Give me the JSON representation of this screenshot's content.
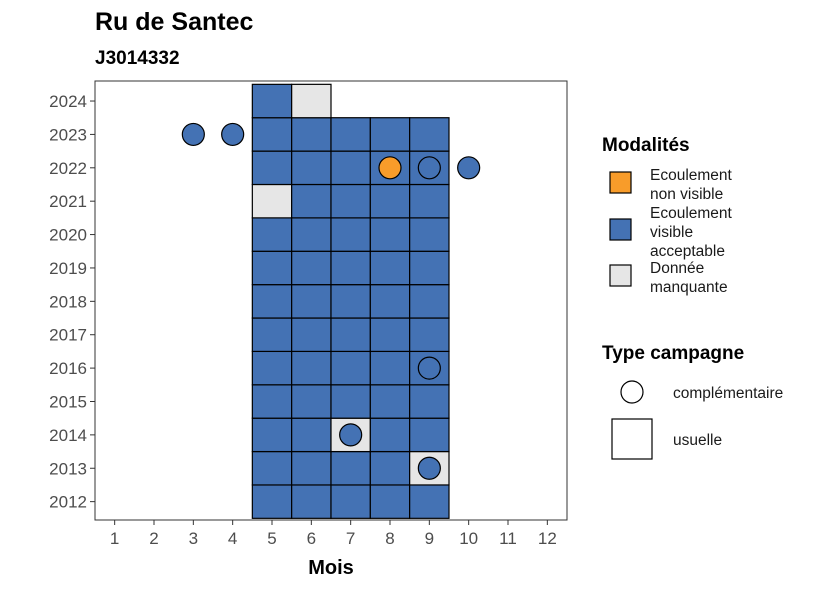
{
  "chart_data": {
    "type": "heatmap",
    "title": "Ru de Santec",
    "subtitle": "J3014332",
    "xlabel": "Mois",
    "ylabel": "",
    "x_ticks": [
      1,
      2,
      3,
      4,
      5,
      6,
      7,
      8,
      9,
      10,
      11,
      12
    ],
    "y_ticks": [
      2012,
      2013,
      2014,
      2015,
      2016,
      2017,
      2018,
      2019,
      2020,
      2021,
      2022,
      2023,
      2024
    ],
    "xlim": [
      0.5,
      12.5
    ],
    "ylim": [
      2011.45,
      2024.6
    ],
    "colors": {
      "Ecoulement non visible": "#f89c2a",
      "Ecoulement visible acceptable": "#4472b4",
      "Donnée manquante": "#e6e6e6"
    },
    "tiles": [
      {
        "year": 2012,
        "month": 5,
        "modalite": "Ecoulement visible acceptable"
      },
      {
        "year": 2012,
        "month": 6,
        "modalite": "Ecoulement visible acceptable"
      },
      {
        "year": 2012,
        "month": 7,
        "modalite": "Ecoulement visible acceptable"
      },
      {
        "year": 2012,
        "month": 8,
        "modalite": "Ecoulement visible acceptable"
      },
      {
        "year": 2012,
        "month": 9,
        "modalite": "Ecoulement visible acceptable"
      },
      {
        "year": 2013,
        "month": 5,
        "modalite": "Ecoulement visible acceptable"
      },
      {
        "year": 2013,
        "month": 6,
        "modalite": "Ecoulement visible acceptable"
      },
      {
        "year": 2013,
        "month": 7,
        "modalite": "Ecoulement visible acceptable"
      },
      {
        "year": 2013,
        "month": 8,
        "modalite": "Ecoulement visible acceptable"
      },
      {
        "year": 2013,
        "month": 9,
        "modalite": "Donnée manquante"
      },
      {
        "year": 2014,
        "month": 5,
        "modalite": "Ecoulement visible acceptable"
      },
      {
        "year": 2014,
        "month": 6,
        "modalite": "Ecoulement visible acceptable"
      },
      {
        "year": 2014,
        "month": 7,
        "modalite": "Donnée manquante"
      },
      {
        "year": 2014,
        "month": 8,
        "modalite": "Ecoulement visible acceptable"
      },
      {
        "year": 2014,
        "month": 9,
        "modalite": "Ecoulement visible acceptable"
      },
      {
        "year": 2015,
        "month": 5,
        "modalite": "Ecoulement visible acceptable"
      },
      {
        "year": 2015,
        "month": 6,
        "modalite": "Ecoulement visible acceptable"
      },
      {
        "year": 2015,
        "month": 7,
        "modalite": "Ecoulement visible acceptable"
      },
      {
        "year": 2015,
        "month": 8,
        "modalite": "Ecoulement visible acceptable"
      },
      {
        "year": 2015,
        "month": 9,
        "modalite": "Ecoulement visible acceptable"
      },
      {
        "year": 2016,
        "month": 5,
        "modalite": "Ecoulement visible acceptable"
      },
      {
        "year": 2016,
        "month": 6,
        "modalite": "Ecoulement visible acceptable"
      },
      {
        "year": 2016,
        "month": 7,
        "modalite": "Ecoulement visible acceptable"
      },
      {
        "year": 2016,
        "month": 8,
        "modalite": "Ecoulement visible acceptable"
      },
      {
        "year": 2016,
        "month": 9,
        "modalite": "Ecoulement visible acceptable"
      },
      {
        "year": 2017,
        "month": 5,
        "modalite": "Ecoulement visible acceptable"
      },
      {
        "year": 2017,
        "month": 6,
        "modalite": "Ecoulement visible acceptable"
      },
      {
        "year": 2017,
        "month": 7,
        "modalite": "Ecoulement visible acceptable"
      },
      {
        "year": 2017,
        "month": 8,
        "modalite": "Ecoulement visible acceptable"
      },
      {
        "year": 2017,
        "month": 9,
        "modalite": "Ecoulement visible acceptable"
      },
      {
        "year": 2018,
        "month": 5,
        "modalite": "Ecoulement visible acceptable"
      },
      {
        "year": 2018,
        "month": 6,
        "modalite": "Ecoulement visible acceptable"
      },
      {
        "year": 2018,
        "month": 7,
        "modalite": "Ecoulement visible acceptable"
      },
      {
        "year": 2018,
        "month": 8,
        "modalite": "Ecoulement visible acceptable"
      },
      {
        "year": 2018,
        "month": 9,
        "modalite": "Ecoulement visible acceptable"
      },
      {
        "year": 2019,
        "month": 5,
        "modalite": "Ecoulement visible acceptable"
      },
      {
        "year": 2019,
        "month": 6,
        "modalite": "Ecoulement visible acceptable"
      },
      {
        "year": 2019,
        "month": 7,
        "modalite": "Ecoulement visible acceptable"
      },
      {
        "year": 2019,
        "month": 8,
        "modalite": "Ecoulement visible acceptable"
      },
      {
        "year": 2019,
        "month": 9,
        "modalite": "Ecoulement visible acceptable"
      },
      {
        "year": 2020,
        "month": 5,
        "modalite": "Ecoulement visible acceptable"
      },
      {
        "year": 2020,
        "month": 6,
        "modalite": "Ecoulement visible acceptable"
      },
      {
        "year": 2020,
        "month": 7,
        "modalite": "Ecoulement visible acceptable"
      },
      {
        "year": 2020,
        "month": 8,
        "modalite": "Ecoulement visible acceptable"
      },
      {
        "year": 2020,
        "month": 9,
        "modalite": "Ecoulement visible acceptable"
      },
      {
        "year": 2021,
        "month": 5,
        "modalite": "Donnée manquante"
      },
      {
        "year": 2021,
        "month": 6,
        "modalite": "Ecoulement visible acceptable"
      },
      {
        "year": 2021,
        "month": 7,
        "modalite": "Ecoulement visible acceptable"
      },
      {
        "year": 2021,
        "month": 8,
        "modalite": "Ecoulement visible acceptable"
      },
      {
        "year": 2021,
        "month": 9,
        "modalite": "Ecoulement visible acceptable"
      },
      {
        "year": 2022,
        "month": 5,
        "modalite": "Ecoulement visible acceptable"
      },
      {
        "year": 2022,
        "month": 6,
        "modalite": "Ecoulement visible acceptable"
      },
      {
        "year": 2022,
        "month": 7,
        "modalite": "Ecoulement visible acceptable"
      },
      {
        "year": 2022,
        "month": 8,
        "modalite": "Ecoulement visible acceptable"
      },
      {
        "year": 2022,
        "month": 9,
        "modalite": "Ecoulement visible acceptable"
      },
      {
        "year": 2023,
        "month": 5,
        "modalite": "Ecoulement visible acceptable"
      },
      {
        "year": 2023,
        "month": 6,
        "modalite": "Ecoulement visible acceptable"
      },
      {
        "year": 2023,
        "month": 7,
        "modalite": "Ecoulement visible acceptable"
      },
      {
        "year": 2023,
        "month": 8,
        "modalite": "Ecoulement visible acceptable"
      },
      {
        "year": 2023,
        "month": 9,
        "modalite": "Ecoulement visible acceptable"
      },
      {
        "year": 2024,
        "month": 5,
        "modalite": "Ecoulement visible acceptable"
      },
      {
        "year": 2024,
        "month": 6,
        "modalite": "Donnée manquante"
      }
    ],
    "points": [
      {
        "year": 2023,
        "month": 3,
        "modalite": "Ecoulement visible acceptable"
      },
      {
        "year": 2023,
        "month": 4,
        "modalite": "Ecoulement visible acceptable"
      },
      {
        "year": 2022,
        "month": 8,
        "modalite": "Ecoulement non visible"
      },
      {
        "year": 2022,
        "month": 9,
        "modalite": "Ecoulement visible acceptable"
      },
      {
        "year": 2022,
        "month": 10,
        "modalite": "Ecoulement visible acceptable"
      },
      {
        "year": 2016,
        "month": 9,
        "modalite": "Ecoulement visible acceptable"
      },
      {
        "year": 2014,
        "month": 7,
        "modalite": "Ecoulement visible acceptable"
      },
      {
        "year": 2013,
        "month": 9,
        "modalite": "Ecoulement visible acceptable"
      }
    ],
    "legend": {
      "modalites_title": "Modalités",
      "modalites": [
        {
          "key": "Ecoulement non visible",
          "lines": [
            "Ecoulement",
            "non visible"
          ]
        },
        {
          "key": "Ecoulement visible acceptable",
          "lines": [
            "Ecoulement",
            "visible",
            "acceptable"
          ]
        },
        {
          "key": "Donnée manquante",
          "lines": [
            "Donnée",
            "manquante"
          ]
        }
      ],
      "campagne_title": "Type campagne",
      "campagnes": [
        {
          "shape": "circle",
          "label": "complémentaire"
        },
        {
          "shape": "square",
          "label": "usuelle"
        }
      ],
      "placement": "right"
    }
  }
}
